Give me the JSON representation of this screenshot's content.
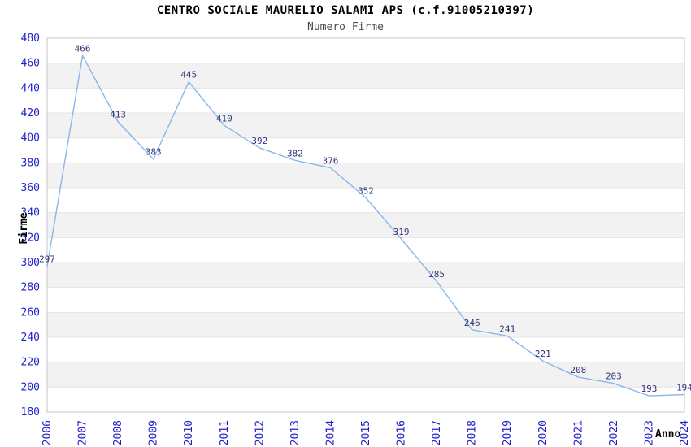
{
  "chart_data": {
    "type": "line",
    "title": "CENTRO SOCIALE MAURELIO SALAMI APS (c.f.91005210397)",
    "subtitle": "Numero Firme",
    "xlabel": "Anno",
    "ylabel": "Firme",
    "categories": [
      "2006",
      "2007",
      "2008",
      "2009",
      "2010",
      "2011",
      "2012",
      "2013",
      "2014",
      "2015",
      "2016",
      "2017",
      "2018",
      "2019",
      "2020",
      "2021",
      "2022",
      "2023",
      "2024"
    ],
    "series": [
      {
        "name": "Numero Firme",
        "values": [
          297,
          466,
          413,
          383,
          445,
          410,
          392,
          382,
          376,
          352,
          319,
          285,
          246,
          241,
          221,
          208,
          203,
          193,
          194
        ]
      }
    ],
    "ylim": [
      180,
      480
    ],
    "y_tick_step": 20,
    "y_ticks": [
      180,
      200,
      220,
      240,
      260,
      280,
      300,
      320,
      340,
      360,
      380,
      400,
      420,
      440,
      460,
      480
    ],
    "grid": true,
    "alternating_bands": true,
    "legend": false,
    "data_labels": true
  },
  "colors": {
    "line": "#88b7e8",
    "data_label": "#333377",
    "tick_label": "#2222cc",
    "band": "#f2f2f2",
    "grid": "#e4e4e4",
    "plot_border": "#c6c6c6",
    "title": "#000000",
    "subtitle": "#4a4a4a",
    "axis_title": "#000000"
  }
}
